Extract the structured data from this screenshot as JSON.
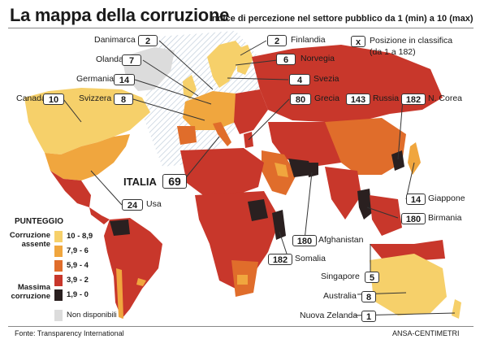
{
  "title": "La mappa della corruzione",
  "subtitle": "Indice di percezione nel settore pubblico da 1 (min) a 10 (max)",
  "legend_key": {
    "symbol": "x",
    "text_line1": "Posizione in classifica",
    "text_line2": "(da 1 a 182)"
  },
  "countries": [
    {
      "name": "Danimarca",
      "rank": "2"
    },
    {
      "name": "Finlandia",
      "rank": "2"
    },
    {
      "name": "Olanda",
      "rank": "7"
    },
    {
      "name": "Norvegia",
      "rank": "6"
    },
    {
      "name": "Germania",
      "rank": "14"
    },
    {
      "name": "Svezia",
      "rank": "4"
    },
    {
      "name": "Svizzera",
      "rank": "8"
    },
    {
      "name": "Canada",
      "rank": "10"
    },
    {
      "name": "Grecia",
      "rank": "80"
    },
    {
      "name": "Russia",
      "rank": "143"
    },
    {
      "name": "N. Corea",
      "rank": "182"
    },
    {
      "name": "ITALIA",
      "rank": "69"
    },
    {
      "name": "Usa",
      "rank": "24"
    },
    {
      "name": "Giappone",
      "rank": "14"
    },
    {
      "name": "Birmania",
      "rank": "180"
    },
    {
      "name": "Afghanistan",
      "rank": "180"
    },
    {
      "name": "Somalia",
      "rank": "182"
    },
    {
      "name": "Singapore",
      "rank": "5"
    },
    {
      "name": "Australia",
      "rank": "8"
    },
    {
      "name": "Nuova Zelanda",
      "rank": "1"
    }
  ],
  "legend": {
    "title": "PUNTEGGIO",
    "top_label_1": "Corruzione",
    "top_label_2": "assente",
    "bottom_label_1": "Massima",
    "bottom_label_2": "corruzione",
    "classes": [
      {
        "label": "10 - 8,9",
        "color": "#f6d06a"
      },
      {
        "label": "7,9 - 6",
        "color": "#f0a63e"
      },
      {
        "label": "5,9 - 4",
        "color": "#e06d2b"
      },
      {
        "label": "3,9 - 2",
        "color": "#c8372b"
      },
      {
        "label": "1,9 - 0",
        "color": "#2a2020"
      }
    ],
    "na_label": "Non disponibili",
    "na_color": "#dcdcdc"
  },
  "source": "Fonte: Transparency International",
  "credit": "ANSA-CENTIMETRI",
  "colors": {
    "ocean": "#ffffff",
    "callout_line": "#333333"
  }
}
